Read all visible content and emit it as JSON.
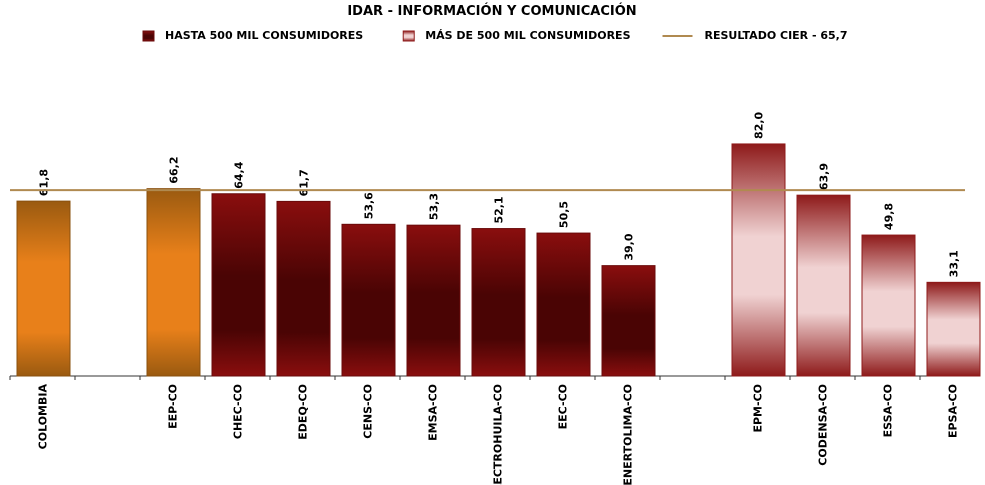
{
  "chart_data": {
    "type": "bar",
    "title": "IDAR - INFORMACIÓN Y COMUNICACIÓN",
    "categories": [
      "COLOMBIA",
      null,
      "EEP-CO",
      "CHEC-CO",
      "EDEQ-CO",
      "CENS-CO",
      "EMSA-CO",
      "ELECTROHUILA-CO",
      "EEC-CO",
      "ENERTOLIMA-CO",
      null,
      "EPM-CO",
      "CODENSA-CO",
      "ESSA-CO",
      "EPSA-CO"
    ],
    "values": [
      61.8,
      null,
      66.2,
      64.4,
      61.7,
      53.6,
      53.3,
      52.1,
      50.5,
      39.0,
      null,
      82.0,
      63.9,
      49.8,
      33.1
    ],
    "value_labels": [
      "61,8",
      null,
      "66,2",
      "64,4",
      "61,7",
      "53,6",
      "53,3",
      "52,1",
      "50,5",
      "39,0",
      null,
      "82,0",
      "63,9",
      "49,8",
      "33,1"
    ],
    "bar_colors": [
      "orange",
      null,
      "orange",
      "darkred",
      "darkred",
      "darkred",
      "darkred",
      "darkred",
      "darkred",
      "darkred",
      null,
      "pink",
      "pink",
      "pink",
      "pink"
    ],
    "legend": [
      {
        "label": "HASTA 500 MIL CONSUMIDORES",
        "color": "darkred"
      },
      {
        "label": "MÁS DE 500 MIL CONSUMIDORES",
        "color": "pink"
      }
    ],
    "reference_line": {
      "label": "RESULTADO CIER - 65,7",
      "value": 65.7,
      "color": "#b08a50"
    },
    "ylim": [
      0,
      100
    ]
  }
}
